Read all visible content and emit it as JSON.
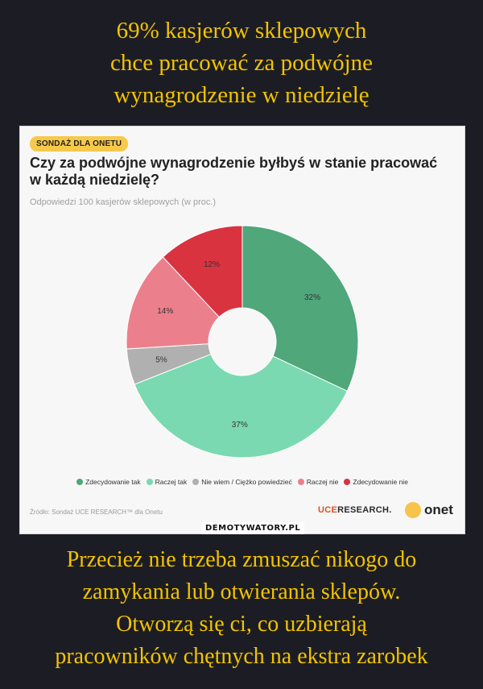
{
  "header": {
    "title": "69% kasjerów sklepowych\nchce pracować za podwójne\nwynagrodzenie w niedzielę"
  },
  "panel": {
    "badge": "SONDAŻ DLA ONETU",
    "question": "Czy za podwójne wynagrodzenie byłbyś w stanie pracować w każdą niedzielę?",
    "subtitle": "Odpowiedzi 100 kasjerów sklepowych (w proc.)",
    "source": "Źródło: Sondaż UCE RESEARCH™ dla Onetu",
    "logo_ucer_main": "UCE",
    "logo_ucer_rest": "RESEARCH.",
    "logo_onet": "onet"
  },
  "watermark": "DEMOTYWATORY.PL",
  "footer": {
    "caption": "Przecież nie trzeba zmuszać nikogo do\nzamykania lub otwierania sklepów.\nOtworzą się ci, co uzbierają\npracowników chętnych na ekstra zarobek"
  },
  "chart_data": {
    "type": "pie",
    "title": "Czy za podwójne wynagrodzenie byłbyś w stanie pracować w każdą niedzielę?",
    "subtitle": "Odpowiedzi 100 kasjerów sklepowych (w proc.)",
    "donut": true,
    "unit": "%",
    "legend_placement": "bottom",
    "slices": [
      {
        "name": "Zdecydowanie tak",
        "value": 32,
        "label": "32%",
        "color": "#4fa77a"
      },
      {
        "name": "Raczej tak",
        "value": 37,
        "label": "37%",
        "color": "#7ad9b0"
      },
      {
        "name": "Nie wiem / Ciężko powiedzieć",
        "value": 5,
        "label": "5%",
        "color": "#b0b0b0"
      },
      {
        "name": "Raczej nie",
        "value": 14,
        "label": "14%",
        "color": "#ec7f8c"
      },
      {
        "name": "Zdecydowanie nie",
        "value": 12,
        "label": "12%",
        "color": "#d93340"
      }
    ]
  }
}
